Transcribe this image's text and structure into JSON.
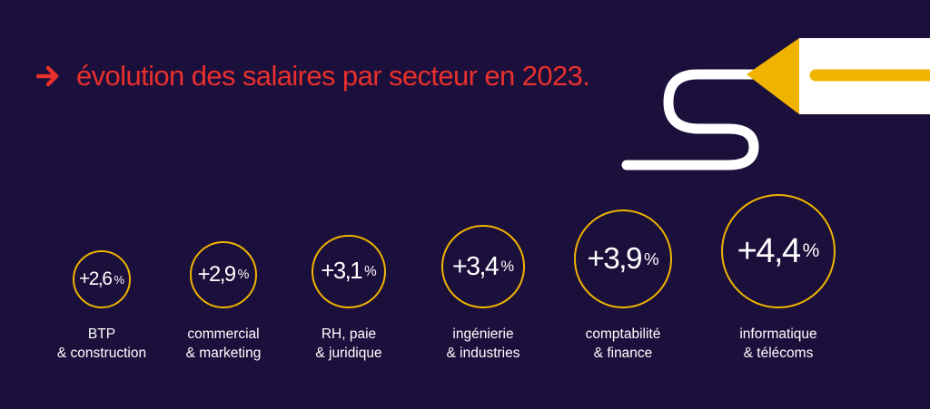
{
  "title": "évolution des salaires par secteur en 2023.",
  "colors": {
    "background": "#1b0f3b",
    "accent": "#e8302d",
    "ring": "#f0b400",
    "text": "#ffffff"
  },
  "chart_data": {
    "type": "bubble",
    "title": "évolution des salaires par secteur en 2023.",
    "unit": "%",
    "categories": [
      [
        "BTP",
        "& construction"
      ],
      [
        "commercial",
        "& marketing"
      ],
      [
        "RH, paie",
        "& juridique"
      ],
      [
        "ingénierie",
        "& industries"
      ],
      [
        "comptabilité",
        "& finance"
      ],
      [
        "informatique",
        "& télécoms"
      ]
    ],
    "values": [
      2.6,
      2.9,
      3.1,
      3.4,
      3.9,
      4.4
    ],
    "value_labels": [
      "+2,6",
      "+2,9",
      "+3,1",
      "+3,4",
      "+3,9",
      "+4,4"
    ]
  }
}
